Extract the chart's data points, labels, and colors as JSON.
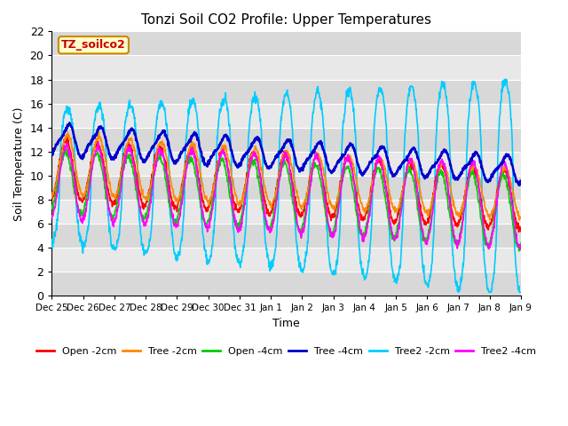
{
  "title": "Tonzi Soil CO2 Profile: Upper Temperatures",
  "xlabel": "Time",
  "ylabel": "Soil Temperature (C)",
  "ylim": [
    0,
    22
  ],
  "yticks": [
    0,
    2,
    4,
    6,
    8,
    10,
    12,
    14,
    16,
    18,
    20,
    22
  ],
  "xtick_labels": [
    "Dec 25",
    "Dec 26",
    "Dec 27",
    "Dec 28",
    "Dec 29",
    "Dec 30",
    "Dec 31",
    "Jan 1",
    "Jan 2",
    "Jan 3",
    "Jan 4",
    "Jan 5",
    "Jan 6",
    "Jan 7",
    "Jan 8",
    "Jan 9"
  ],
  "legend_labels": [
    "Open -2cm",
    "Tree -2cm",
    "Open -4cm",
    "Tree -4cm",
    "Tree2 -2cm",
    "Tree2 -4cm"
  ],
  "legend_colors": [
    "#ff0000",
    "#ff8800",
    "#00cc00",
    "#0000cc",
    "#00ccff",
    "#ff00ff"
  ],
  "watermark_text": "TZ_soilco2",
  "plot_bg_color": "#e8e8e8",
  "stripe_color": "#d0d0d0",
  "n_days": 15,
  "pts_per_day": 96
}
